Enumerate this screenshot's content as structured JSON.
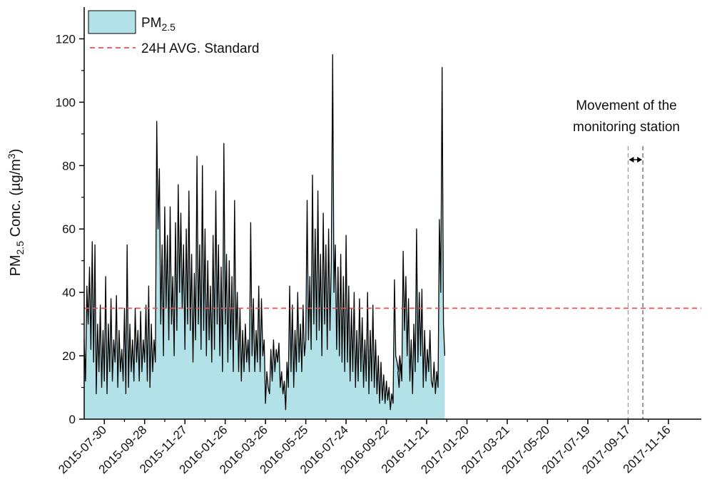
{
  "chart_data": {
    "type": "area",
    "title": "",
    "xlabel": "",
    "ylabel": {
      "base": "PM",
      "sub": "2.5",
      "mid": " Conc. (µg/m",
      "sup": "3",
      "end": ")"
    },
    "ylim": [
      0,
      130
    ],
    "yticks": [
      0,
      20,
      40,
      60,
      80,
      100,
      120
    ],
    "xlim": [
      "2015-06-30",
      "2018-01-04"
    ],
    "xticks": [
      "2015-07-30",
      "2015-09-28",
      "2015-11-27",
      "2016-01-26",
      "2016-03-26",
      "2016-05-25",
      "2016-07-24",
      "2016-09-22",
      "2016-11-21",
      "2017-01-20",
      "2017-03-21",
      "2017-05-20",
      "2017-07-19",
      "2017-09-17",
      "2017-11-16"
    ],
    "legend": {
      "position": "top-left",
      "entries": [
        {
          "label_base": "PM",
          "label_sub": "2.5",
          "kind": "area",
          "color": "#b2e2e8"
        },
        {
          "label": "24H AVG. Standard",
          "kind": "dashed",
          "color": "#e05555"
        }
      ]
    },
    "standard_line": {
      "value": 35,
      "color": "#e05555"
    },
    "annotation": {
      "lines": [
        "Movement of the",
        "monitoring station"
      ],
      "gap_start": "2017-09-17",
      "gap_end": "2017-10-09"
    },
    "series": [
      {
        "kind": "area",
        "fill": "#b2e2e8",
        "stroke": "#000000",
        "points": [
          [
            "2015-06-30",
            25
          ],
          [
            "2015-07-02",
            12
          ],
          [
            "2015-07-04",
            42
          ],
          [
            "2015-07-06",
            30
          ],
          [
            "2015-07-08",
            48
          ],
          [
            "2015-07-10",
            22
          ],
          [
            "2015-07-12",
            56
          ],
          [
            "2015-07-14",
            18
          ],
          [
            "2015-07-16",
            55
          ],
          [
            "2015-07-18",
            8
          ],
          [
            "2015-07-20",
            30
          ],
          [
            "2015-07-22",
            15
          ],
          [
            "2015-07-24",
            36
          ],
          [
            "2015-07-26",
            10
          ],
          [
            "2015-07-28",
            28
          ],
          [
            "2015-07-30",
            12
          ],
          [
            "2015-08-01",
            45
          ],
          [
            "2015-08-03",
            8
          ],
          [
            "2015-08-05",
            30
          ],
          [
            "2015-08-07",
            15
          ],
          [
            "2015-08-09",
            38
          ],
          [
            "2015-08-11",
            12
          ],
          [
            "2015-08-13",
            25
          ],
          [
            "2015-08-15",
            18
          ],
          [
            "2015-08-17",
            39
          ],
          [
            "2015-08-19",
            10
          ],
          [
            "2015-08-21",
            28
          ],
          [
            "2015-08-23",
            15
          ],
          [
            "2015-08-25",
            22
          ],
          [
            "2015-08-27",
            12
          ],
          [
            "2015-08-29",
            35
          ],
          [
            "2015-08-31",
            8
          ],
          [
            "2015-09-02",
            55
          ],
          [
            "2015-09-04",
            10
          ],
          [
            "2015-09-06",
            30
          ],
          [
            "2015-09-08",
            15
          ],
          [
            "2015-09-10",
            25
          ],
          [
            "2015-09-12",
            12
          ],
          [
            "2015-09-14",
            35
          ],
          [
            "2015-09-16",
            18
          ],
          [
            "2015-09-18",
            28
          ],
          [
            "2015-09-20",
            12
          ],
          [
            "2015-09-22",
            34
          ],
          [
            "2015-09-24",
            15
          ],
          [
            "2015-09-26",
            25
          ],
          [
            "2015-09-28",
            18
          ],
          [
            "2015-09-30",
            36
          ],
          [
            "2015-10-02",
            12
          ],
          [
            "2015-10-04",
            42
          ],
          [
            "2015-10-06",
            10
          ],
          [
            "2015-10-08",
            30
          ],
          [
            "2015-10-10",
            15
          ],
          [
            "2015-10-12",
            25
          ],
          [
            "2015-10-14",
            18
          ],
          [
            "2015-10-16",
            94
          ],
          [
            "2015-10-18",
            60
          ],
          [
            "2015-10-20",
            79
          ],
          [
            "2015-10-22",
            30
          ],
          [
            "2015-10-24",
            55
          ],
          [
            "2015-10-26",
            20
          ],
          [
            "2015-10-28",
            67
          ],
          [
            "2015-10-30",
            35
          ],
          [
            "2015-11-01",
            58
          ],
          [
            "2015-11-03",
            25
          ],
          [
            "2015-11-05",
            67
          ],
          [
            "2015-11-07",
            30
          ],
          [
            "2015-11-09",
            45
          ],
          [
            "2015-11-11",
            20
          ],
          [
            "2015-11-13",
            62
          ],
          [
            "2015-11-15",
            28
          ],
          [
            "2015-11-17",
            74
          ],
          [
            "2015-11-19",
            40
          ],
          [
            "2015-11-21",
            65
          ],
          [
            "2015-11-23",
            35
          ],
          [
            "2015-11-25",
            55
          ],
          [
            "2015-11-27",
            22
          ],
          [
            "2015-11-29",
            60
          ],
          [
            "2015-12-01",
            30
          ],
          [
            "2015-12-03",
            72
          ],
          [
            "2015-12-05",
            28
          ],
          [
            "2015-12-07",
            52
          ],
          [
            "2015-12-09",
            18
          ],
          [
            "2015-12-11",
            46
          ],
          [
            "2015-12-13",
            25
          ],
          [
            "2015-12-15",
            83
          ],
          [
            "2015-12-17",
            30
          ],
          [
            "2015-12-19",
            55
          ],
          [
            "2015-12-21",
            22
          ],
          [
            "2015-12-23",
            80
          ],
          [
            "2015-12-25",
            28
          ],
          [
            "2015-12-27",
            60
          ],
          [
            "2015-12-29",
            20
          ],
          [
            "2015-12-31",
            50
          ],
          [
            "2016-01-02",
            25
          ],
          [
            "2016-01-04",
            42
          ],
          [
            "2016-01-06",
            18
          ],
          [
            "2016-01-08",
            58
          ],
          [
            "2016-01-10",
            22
          ],
          [
            "2016-01-12",
            72
          ],
          [
            "2016-01-14",
            30
          ],
          [
            "2016-01-16",
            55
          ],
          [
            "2016-01-18",
            20
          ],
          [
            "2016-01-20",
            48
          ],
          [
            "2016-01-22",
            15
          ],
          [
            "2016-01-24",
            87
          ],
          [
            "2016-01-26",
            30
          ],
          [
            "2016-01-28",
            52
          ],
          [
            "2016-01-30",
            18
          ],
          [
            "2016-02-01",
            50
          ],
          [
            "2016-02-03",
            22
          ],
          [
            "2016-02-05",
            45
          ],
          [
            "2016-02-07",
            15
          ],
          [
            "2016-02-09",
            69
          ],
          [
            "2016-02-11",
            25
          ],
          [
            "2016-02-13",
            40
          ],
          [
            "2016-02-15",
            15
          ],
          [
            "2016-02-17",
            35
          ],
          [
            "2016-02-19",
            12
          ],
          [
            "2016-02-21",
            28
          ],
          [
            "2016-02-23",
            15
          ],
          [
            "2016-02-25",
            30
          ],
          [
            "2016-02-27",
            18
          ],
          [
            "2016-02-29",
            25
          ],
          [
            "2016-03-02",
            15
          ],
          [
            "2016-03-04",
            62
          ],
          [
            "2016-03-06",
            20
          ],
          [
            "2016-03-08",
            38
          ],
          [
            "2016-03-10",
            15
          ],
          [
            "2016-03-12",
            28
          ],
          [
            "2016-03-14",
            18
          ],
          [
            "2016-03-16",
            42
          ],
          [
            "2016-03-18",
            15
          ],
          [
            "2016-03-20",
            38
          ],
          [
            "2016-03-22",
            20
          ],
          [
            "2016-03-24",
            25
          ],
          [
            "2016-03-26",
            5
          ],
          [
            "2016-03-28",
            15
          ],
          [
            "2016-03-30",
            10
          ],
          [
            "2016-04-01",
            8
          ],
          [
            "2016-04-03",
            22
          ],
          [
            "2016-04-05",
            12
          ],
          [
            "2016-04-07",
            25
          ],
          [
            "2016-04-09",
            15
          ],
          [
            "2016-04-11",
            22
          ],
          [
            "2016-04-13",
            18
          ],
          [
            "2016-04-15",
            24
          ],
          [
            "2016-04-17",
            10
          ],
          [
            "2016-04-19",
            15
          ],
          [
            "2016-04-21",
            8
          ],
          [
            "2016-04-23",
            12
          ],
          [
            "2016-04-25",
            3
          ],
          [
            "2016-04-27",
            18
          ],
          [
            "2016-04-29",
            10
          ],
          [
            "2016-05-01",
            42
          ],
          [
            "2016-05-03",
            15
          ],
          [
            "2016-05-05",
            36
          ],
          [
            "2016-05-07",
            10
          ],
          [
            "2016-05-09",
            28
          ],
          [
            "2016-05-11",
            15
          ],
          [
            "2016-05-13",
            40
          ],
          [
            "2016-05-15",
            18
          ],
          [
            "2016-05-17",
            30
          ],
          [
            "2016-05-19",
            15
          ],
          [
            "2016-05-21",
            36
          ],
          [
            "2016-05-23",
            20
          ],
          [
            "2016-05-25",
            25
          ],
          [
            "2016-05-27",
            69
          ],
          [
            "2016-05-29",
            25
          ],
          [
            "2016-05-31",
            45
          ],
          [
            "2016-06-02",
            22
          ],
          [
            "2016-06-04",
            77
          ],
          [
            "2016-06-06",
            30
          ],
          [
            "2016-06-08",
            60
          ],
          [
            "2016-06-10",
            25
          ],
          [
            "2016-06-12",
            72
          ],
          [
            "2016-06-14",
            28
          ],
          [
            "2016-06-16",
            52
          ],
          [
            "2016-06-18",
            20
          ],
          [
            "2016-06-20",
            65
          ],
          [
            "2016-06-22",
            30
          ],
          [
            "2016-06-24",
            55
          ],
          [
            "2016-06-26",
            22
          ],
          [
            "2016-06-28",
            60
          ],
          [
            "2016-06-30",
            28
          ],
          [
            "2016-07-02",
            50
          ],
          [
            "2016-07-04",
            115
          ],
          [
            "2016-07-06",
            40
          ],
          [
            "2016-07-08",
            55
          ],
          [
            "2016-07-10",
            22
          ],
          [
            "2016-07-12",
            48
          ],
          [
            "2016-07-14",
            20
          ],
          [
            "2016-07-16",
            52
          ],
          [
            "2016-07-18",
            18
          ],
          [
            "2016-07-20",
            45
          ],
          [
            "2016-07-22",
            15
          ],
          [
            "2016-07-24",
            58
          ],
          [
            "2016-07-26",
            18
          ],
          [
            "2016-07-28",
            42
          ],
          [
            "2016-07-30",
            12
          ],
          [
            "2016-08-01",
            35
          ],
          [
            "2016-08-03",
            15
          ],
          [
            "2016-08-05",
            40
          ],
          [
            "2016-08-07",
            10
          ],
          [
            "2016-08-09",
            28
          ],
          [
            "2016-08-11",
            12
          ],
          [
            "2016-08-13",
            38
          ],
          [
            "2016-08-15",
            15
          ],
          [
            "2016-08-17",
            32
          ],
          [
            "2016-08-19",
            10
          ],
          [
            "2016-08-21",
            25
          ],
          [
            "2016-08-23",
            12
          ],
          [
            "2016-08-25",
            40
          ],
          [
            "2016-08-27",
            8
          ],
          [
            "2016-08-29",
            28
          ],
          [
            "2016-08-31",
            12
          ],
          [
            "2016-09-02",
            36
          ],
          [
            "2016-09-04",
            10
          ],
          [
            "2016-09-06",
            25
          ],
          [
            "2016-09-08",
            8
          ],
          [
            "2016-09-10",
            20
          ],
          [
            "2016-09-12",
            5
          ],
          [
            "2016-09-14",
            18
          ],
          [
            "2016-09-16",
            6
          ],
          [
            "2016-09-18",
            14
          ],
          [
            "2016-09-20",
            5
          ],
          [
            "2016-09-22",
            12
          ],
          [
            "2016-09-24",
            6
          ],
          [
            "2016-09-26",
            10
          ],
          [
            "2016-09-28",
            3
          ],
          [
            "2016-09-30",
            8
          ],
          [
            "2016-10-02",
            5
          ],
          [
            "2016-10-04",
            44
          ],
          [
            "2016-10-06",
            20
          ],
          [
            "2016-10-08",
            18
          ],
          [
            "2016-10-10",
            15
          ],
          [
            "2016-10-12",
            20
          ],
          [
            "2016-10-14",
            16
          ],
          [
            "2016-10-16",
            18
          ]
        ]
      },
      {
        "kind": "area",
        "fill": "#b2e2e8",
        "stroke": "#000000",
        "points": [
          [
            "2016-10-09",
            15
          ],
          [
            "2016-10-11",
            10
          ],
          [
            "2016-10-13",
            18
          ],
          [
            "2016-10-15",
            12
          ],
          [
            "2016-10-17",
            53
          ],
          [
            "2016-10-19",
            28
          ],
          [
            "2016-10-21",
            45
          ],
          [
            "2016-10-23",
            20
          ],
          [
            "2016-10-25",
            38
          ],
          [
            "2016-10-27",
            12
          ],
          [
            "2016-10-29",
            25
          ],
          [
            "2016-10-31",
            8
          ],
          [
            "2016-11-02",
            30
          ],
          [
            "2016-11-04",
            15
          ],
          [
            "2016-11-06",
            60
          ],
          [
            "2016-11-08",
            18
          ],
          [
            "2016-11-10",
            40
          ],
          [
            "2016-11-12",
            20
          ],
          [
            "2016-11-14",
            41
          ],
          [
            "2016-11-16",
            10
          ],
          [
            "2016-11-18",
            28
          ],
          [
            "2016-11-20",
            12
          ],
          [
            "2016-11-22",
            22
          ],
          [
            "2016-11-24",
            15
          ],
          [
            "2016-11-26",
            28
          ],
          [
            "2016-11-28",
            12
          ],
          [
            "2016-11-30",
            10
          ],
          [
            "2016-12-02",
            18
          ],
          [
            "2016-12-04",
            8
          ],
          [
            "2016-12-06",
            15
          ],
          [
            "2016-12-08",
            10
          ],
          [
            "2016-12-10",
            63
          ],
          [
            "2016-12-12",
            40
          ],
          [
            "2016-12-14",
            111
          ],
          [
            "2016-12-16",
            30
          ],
          [
            "2016-12-18",
            20
          ]
        ]
      }
    ]
  }
}
